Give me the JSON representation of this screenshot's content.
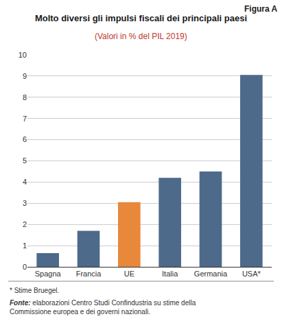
{
  "chart_data": {
    "type": "bar",
    "title": "Molto diversi gli impulsi fiscali dei principali paesi",
    "subtitle": "(Valori in % del PIL 2019)",
    "annotations": [
      "Figura A",
      "* Stime Bruegel.",
      "Fonte:",
      "elaborazioni Centro Studi Confindustria su stime della\nCommissione europea e dei governi nazionali."
    ],
    "categories": [
      "Spagna",
      "Francia",
      "UE",
      "Italia",
      "Germania",
      "USA*"
    ],
    "values": [
      0.65,
      1.7,
      3.05,
      4.2,
      4.5,
      9.05
    ],
    "colors": [
      "#4d6a8a",
      "#4d6a8a",
      "#e8883a",
      "#4d6a8a",
      "#4d6a8a",
      "#4d6a8a"
    ],
    "ylim": [
      0,
      10
    ],
    "yticks": [
      0,
      1,
      2,
      3,
      4,
      5,
      6,
      7,
      8,
      9,
      10
    ],
    "grid": true
  }
}
